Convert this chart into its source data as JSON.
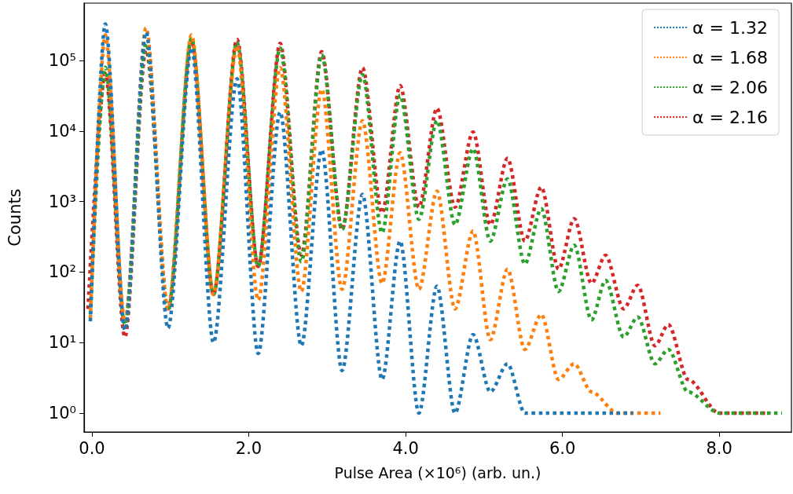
{
  "chart_data": {
    "type": "line",
    "xlabel": "Pulse Area (×10⁶) (arb. un.)",
    "ylabel": "Counts",
    "log": "y",
    "legend": "top right",
    "grid": false,
    "marker": "none",
    "line_style": "dotted",
    "xlim": [
      -0.1,
      8.92
    ],
    "xticks": [
      {
        "value": 0,
        "label": "0.0"
      },
      {
        "value": 2,
        "label": "2.0"
      },
      {
        "value": 4,
        "label": "4.0"
      },
      {
        "value": 6,
        "label": "6.0"
      },
      {
        "value": 8,
        "label": "8.0"
      }
    ],
    "ylim": [
      0.54,
      650000
    ],
    "yticks": [
      {
        "value": 1,
        "label": "10⁰"
      },
      {
        "value": 10,
        "label": "10¹"
      },
      {
        "value": 100,
        "label": "10²"
      },
      {
        "value": 1000,
        "label": "10³"
      },
      {
        "value": 10000,
        "label": "10⁴"
      },
      {
        "value": 100000,
        "label": "10⁵"
      }
    ],
    "series": [
      {
        "name": "α = 1.32",
        "color": "#1f77b4",
        "x": [
          -0.02,
          0.17,
          0.42,
          0.69,
          0.97,
          1.27,
          1.55,
          1.85,
          2.12,
          2.4,
          2.67,
          2.93,
          3.19,
          3.45,
          3.7,
          3.93,
          4.17,
          4.4,
          4.63,
          4.86,
          5.08,
          5.3,
          5.52,
          5.8,
          6.2,
          6.9
        ],
        "values": [
          20,
          330000,
          15,
          250000,
          16,
          150000,
          10,
          55000,
          7,
          18500,
          9,
          5400,
          4,
          1260,
          3,
          275,
          1,
          63,
          1,
          13,
          2,
          5,
          1,
          1,
          1,
          1
        ]
      },
      {
        "name": "α = 1.68",
        "color": "#ff7f0e",
        "x": [
          -0.02,
          0.17,
          0.42,
          0.69,
          0.97,
          1.27,
          1.55,
          1.85,
          2.12,
          2.4,
          2.67,
          2.93,
          3.19,
          3.45,
          3.7,
          3.93,
          4.17,
          4.4,
          4.63,
          4.86,
          5.08,
          5.3,
          5.52,
          5.73,
          5.95,
          6.15,
          6.37,
          6.7,
          7.25
        ],
        "values": [
          22,
          230000,
          20,
          290000,
          30,
          230000,
          48,
          160000,
          40,
          79000,
          53,
          39000,
          57,
          14000,
          69,
          4900,
          57,
          1400,
          30,
          380,
          11,
          110,
          8,
          25,
          3,
          5,
          2,
          1,
          1
        ]
      },
      {
        "name": "α = 2.06",
        "color": "#2ca02c",
        "x": [
          -0.02,
          0.17,
          0.42,
          0.69,
          0.97,
          1.27,
          1.55,
          1.85,
          2.12,
          2.4,
          2.67,
          2.93,
          3.19,
          3.45,
          3.7,
          3.93,
          4.17,
          4.4,
          4.63,
          4.86,
          5.08,
          5.3,
          5.52,
          5.73,
          5.95,
          6.15,
          6.37,
          6.55,
          6.78,
          6.96,
          7.18,
          7.35,
          7.6,
          8.0,
          8.8
        ],
        "values": [
          25,
          80000,
          18,
          175000,
          28,
          210000,
          48,
          180000,
          120,
          150000,
          140,
          120000,
          400,
          63000,
          360,
          32000,
          560,
          14000,
          470,
          5600,
          275,
          2100,
          130,
          790,
          53,
          240,
          21,
          76,
          12,
          23,
          5,
          8,
          2,
          1,
          1
        ]
      },
      {
        "name": "α = 2.16",
        "color": "#d62728",
        "x": [
          -0.05,
          0.17,
          0.42,
          0.69,
          0.97,
          1.27,
          1.55,
          1.85,
          2.12,
          2.4,
          2.67,
          2.93,
          3.19,
          3.45,
          3.7,
          3.93,
          4.17,
          4.4,
          4.63,
          4.86,
          5.08,
          5.3,
          5.52,
          5.73,
          5.95,
          6.15,
          6.37,
          6.55,
          6.78,
          6.96,
          7.18,
          7.35,
          7.6,
          8.0,
          8.6
        ],
        "values": [
          30,
          65000,
          12,
          140000,
          30,
          190000,
          48,
          200000,
          120,
          175000,
          174,
          133000,
          400,
          79000,
          690,
          44000,
          830,
          21000,
          830,
          9700,
          470,
          4100,
          275,
          1600,
          110,
          570,
          69,
          173,
          30,
          65,
          9,
          18,
          3,
          1,
          1
        ]
      }
    ]
  }
}
